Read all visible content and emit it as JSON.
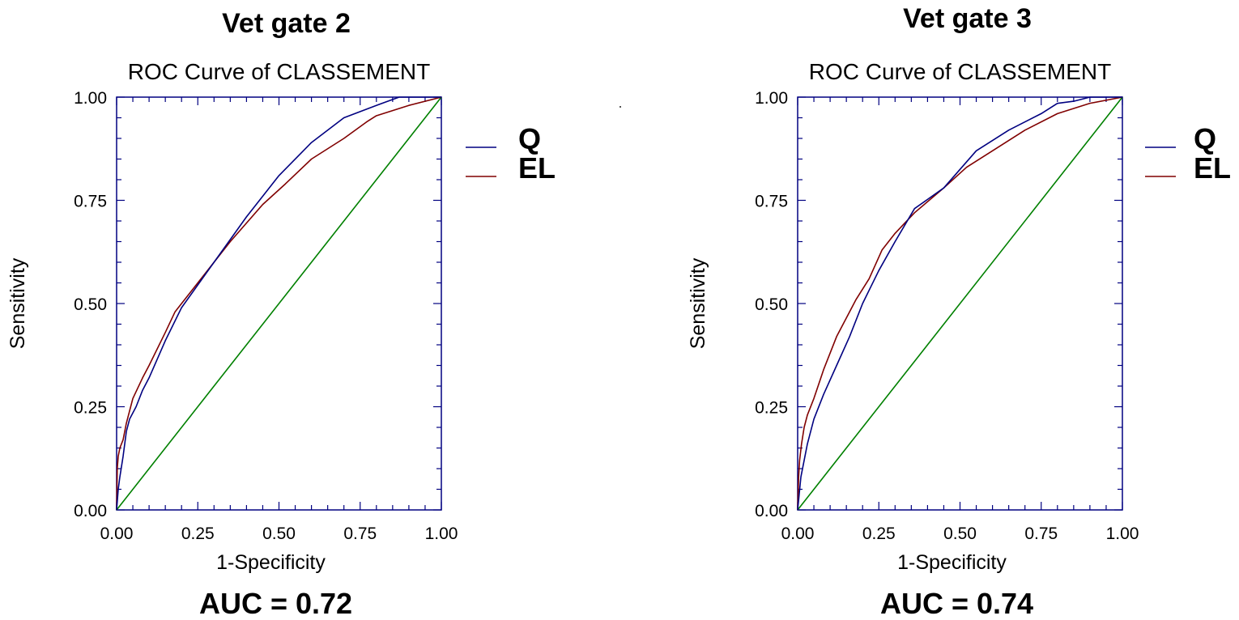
{
  "chart_data": [
    {
      "type": "line",
      "heading": "Vet gate 2",
      "title": "ROC Curve of CLASSEMENT",
      "xlabel": "1-Specificity",
      "ylabel": "Sensitivity",
      "xlim": [
        0,
        1
      ],
      "ylim": [
        0,
        1
      ],
      "xticks": [
        "0.00",
        "0.25",
        "0.50",
        "0.75",
        "1.00"
      ],
      "yticks": [
        "0.00",
        "0.25",
        "0.50",
        "0.75",
        "1.00"
      ],
      "grid": false,
      "legend_position": "right",
      "footer": "AUC = 0.72",
      "series": [
        {
          "name": "Q",
          "color": "#000080",
          "x": [
            0,
            0.005,
            0.01,
            0.02,
            0.03,
            0.04,
            0.06,
            0.08,
            0.1,
            0.15,
            0.2,
            0.3,
            0.4,
            0.5,
            0.6,
            0.7,
            0.8,
            0.87,
            0.93,
            1.0
          ],
          "y": [
            0,
            0.05,
            0.08,
            0.13,
            0.19,
            0.22,
            0.25,
            0.29,
            0.32,
            0.41,
            0.49,
            0.6,
            0.71,
            0.81,
            0.89,
            0.95,
            0.98,
            1.0,
            1.0,
            1.0
          ]
        },
        {
          "name": "EL",
          "color": "#800000",
          "x": [
            0,
            0.002,
            0.005,
            0.01,
            0.02,
            0.03,
            0.05,
            0.08,
            0.1,
            0.15,
            0.18,
            0.25,
            0.35,
            0.45,
            0.52,
            0.6,
            0.7,
            0.77,
            0.8,
            0.9,
            1.0
          ],
          "y": [
            0,
            0.1,
            0.13,
            0.15,
            0.17,
            0.21,
            0.27,
            0.32,
            0.35,
            0.43,
            0.48,
            0.55,
            0.65,
            0.74,
            0.79,
            0.85,
            0.9,
            0.94,
            0.955,
            0.98,
            1.0
          ]
        },
        {
          "name": "",
          "color": "#008000",
          "x": [
            0,
            1
          ],
          "y": [
            0,
            1
          ]
        }
      ]
    },
    {
      "type": "line",
      "heading": "Vet gate 3",
      "title": "ROC Curve of CLASSEMENT",
      "xlabel": "1-Specificity",
      "ylabel": "Sensitivity",
      "xlim": [
        0,
        1
      ],
      "ylim": [
        0,
        1
      ],
      "xticks": [
        "0.00",
        "0.25",
        "0.50",
        "0.75",
        "1.00"
      ],
      "yticks": [
        "0.00",
        "0.25",
        "0.50",
        "0.75",
        "1.00"
      ],
      "grid": false,
      "legend_position": "right",
      "footer": "AUC = 0.74",
      "series": [
        {
          "name": "Q",
          "color": "#000080",
          "x": [
            0,
            0.005,
            0.01,
            0.02,
            0.03,
            0.05,
            0.08,
            0.12,
            0.16,
            0.2,
            0.25,
            0.3,
            0.36,
            0.45,
            0.55,
            0.65,
            0.75,
            0.8,
            0.85,
            0.9,
            1.0
          ],
          "y": [
            0,
            0.04,
            0.08,
            0.12,
            0.16,
            0.22,
            0.28,
            0.35,
            0.42,
            0.5,
            0.58,
            0.65,
            0.73,
            0.78,
            0.87,
            0.92,
            0.96,
            0.985,
            0.99,
            1.0,
            1.0
          ]
        },
        {
          "name": "EL",
          "color": "#800000",
          "x": [
            0,
            0.003,
            0.006,
            0.012,
            0.02,
            0.03,
            0.05,
            0.08,
            0.12,
            0.18,
            0.22,
            0.26,
            0.3,
            0.36,
            0.45,
            0.52,
            0.6,
            0.7,
            0.8,
            0.9,
            1.0
          ],
          "y": [
            0,
            0.08,
            0.12,
            0.16,
            0.2,
            0.23,
            0.27,
            0.34,
            0.42,
            0.51,
            0.56,
            0.63,
            0.67,
            0.72,
            0.78,
            0.83,
            0.87,
            0.92,
            0.96,
            0.985,
            1.0
          ]
        },
        {
          "name": "",
          "color": "#008000",
          "x": [
            0,
            1
          ],
          "y": [
            0,
            1
          ]
        }
      ]
    }
  ]
}
